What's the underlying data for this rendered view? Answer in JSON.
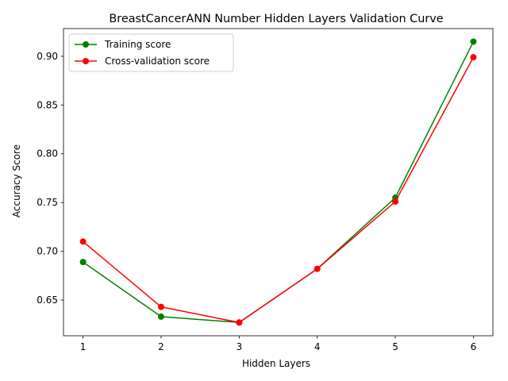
{
  "chart_data": {
    "type": "line",
    "title": "BreastCancerANN Number Hidden Layers Validation Curve",
    "xlabel": "Hidden Layers",
    "ylabel": "Accuracy Score",
    "x": [
      1,
      2,
      3,
      4,
      5,
      6
    ],
    "xticks": [
      "1",
      "2",
      "3",
      "4",
      "5",
      "6"
    ],
    "yticks": [
      "0.65",
      "0.70",
      "0.75",
      "0.80",
      "0.85",
      "0.90"
    ],
    "xlim": [
      0.75,
      6.25
    ],
    "ylim": [
      0.6134,
      0.9284
    ],
    "grid": false,
    "legend_position": "top-left",
    "series": [
      {
        "name": "Training score",
        "color": "#008000",
        "values": [
          0.689,
          0.633,
          0.627,
          0.682,
          0.755,
          0.915
        ]
      },
      {
        "name": "Cross-validation score",
        "color": "#ff0000",
        "values": [
          0.71,
          0.643,
          0.627,
          0.682,
          0.751,
          0.899
        ]
      }
    ]
  }
}
